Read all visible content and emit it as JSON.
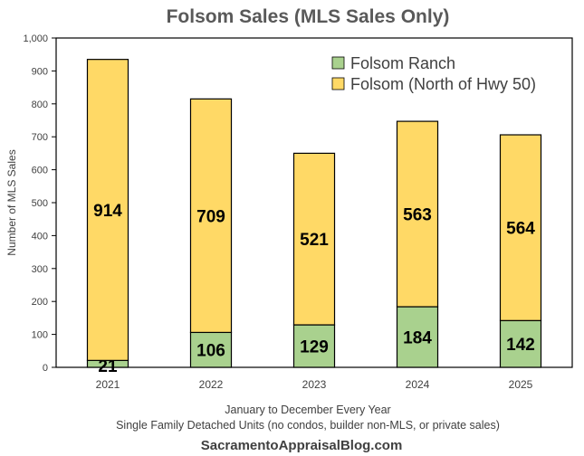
{
  "chart_data": {
    "type": "bar",
    "stacked": true,
    "title": "Folsom Sales (MLS Sales Only)",
    "ylabel": "Number of MLS Sales",
    "xlabel_lines": [
      "January to December Every Year",
      "Single Family Detached Units (no condos, builder non-MLS, or private sales)"
    ],
    "categories": [
      "2021",
      "2022",
      "2023",
      "2024",
      "2025"
    ],
    "series": [
      {
        "name": "Folsom Ranch",
        "values": [
          21,
          106,
          129,
          184,
          142
        ],
        "color": "#a9d18e"
      },
      {
        "name": "Folsom (North of Hwy 50)",
        "values": [
          914,
          709,
          521,
          563,
          564
        ],
        "color": "#ffd966"
      }
    ],
    "ylim": [
      0,
      1000
    ],
    "yticks": [
      "0",
      "100",
      "200",
      "300",
      "400",
      "500",
      "600",
      "700",
      "800",
      "900",
      "1,000"
    ],
    "grid": false,
    "legend_position": "top-right",
    "source": "SacramentoAppraisalBlog.com"
  }
}
